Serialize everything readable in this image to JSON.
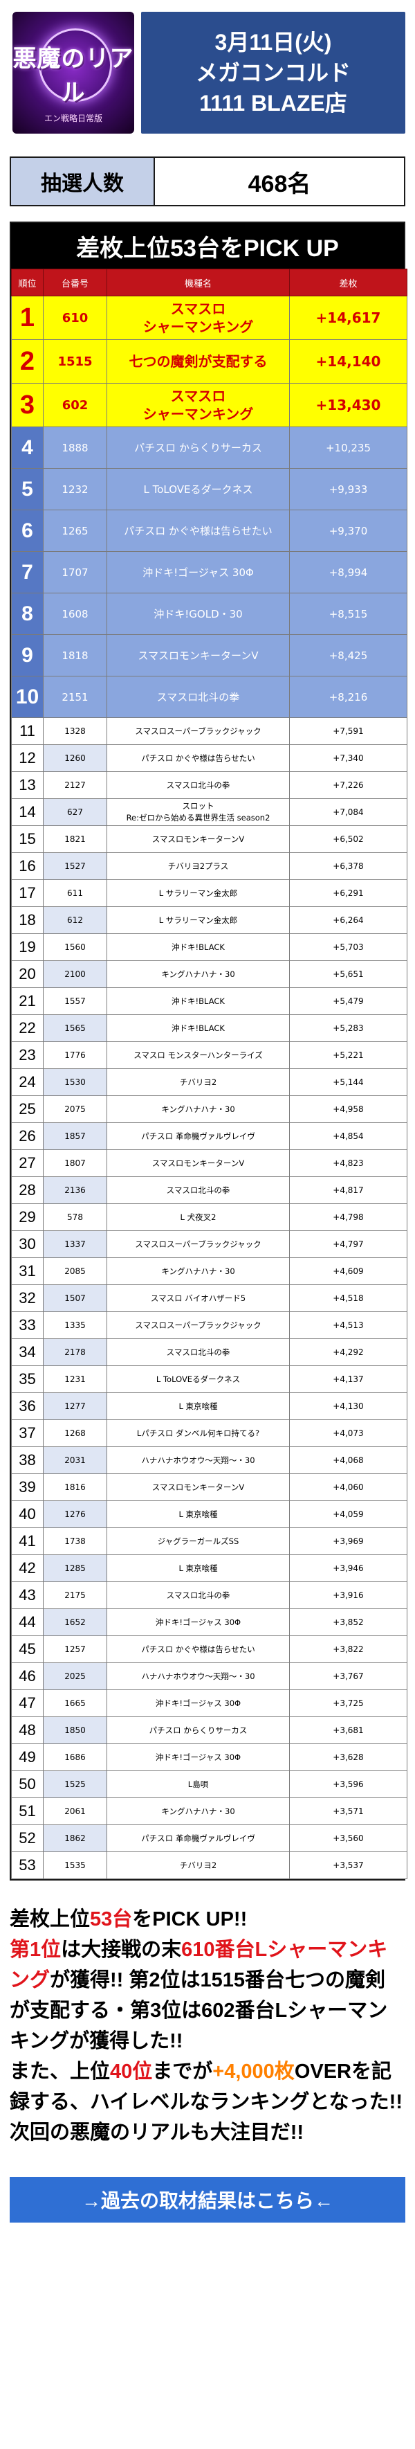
{
  "header": {
    "logo_text": "悪魔のリアル",
    "logo_sub": "エン戦略日常版",
    "date": "3月11日(火)",
    "event": "メガコンコルド",
    "store": "1111 BLAZE店"
  },
  "lottery": {
    "label": "抽選人数",
    "value": "468名"
  },
  "ranking": {
    "title": "差枚上位53台をPICK UP",
    "headers": [
      "順位",
      "台番号",
      "機種名",
      "差枚"
    ],
    "rows": [
      {
        "rank": "1",
        "no": "610",
        "name": "スマスロ\nシャーマンキング",
        "diff": "+14,617"
      },
      {
        "rank": "2",
        "no": "1515",
        "name": "七つの魔剣が支配する",
        "diff": "+14,140"
      },
      {
        "rank": "3",
        "no": "602",
        "name": "スマスロ\nシャーマンキング",
        "diff": "+13,430"
      },
      {
        "rank": "4",
        "no": "1888",
        "name": "パチスロ からくりサーカス",
        "diff": "+10,235"
      },
      {
        "rank": "5",
        "no": "1232",
        "name": "L ToLOVEるダークネス",
        "diff": "+9,933"
      },
      {
        "rank": "6",
        "no": "1265",
        "name": "パチスロ かぐや様は告らせたい",
        "diff": "+9,370"
      },
      {
        "rank": "7",
        "no": "1707",
        "name": "沖ドキ!ゴージャス 30Φ",
        "diff": "+8,994"
      },
      {
        "rank": "8",
        "no": "1608",
        "name": "沖ドキ!GOLD・30",
        "diff": "+8,515"
      },
      {
        "rank": "9",
        "no": "1818",
        "name": "スマスロモンキーターンV",
        "diff": "+8,425"
      },
      {
        "rank": "10",
        "no": "2151",
        "name": "スマスロ北斗の拳",
        "diff": "+8,216"
      },
      {
        "rank": "11",
        "no": "1328",
        "name": "スマスロスーパーブラックジャック",
        "diff": "+7,591"
      },
      {
        "rank": "12",
        "no": "1260",
        "name": "パチスロ かぐや様は告らせたい",
        "diff": "+7,340"
      },
      {
        "rank": "13",
        "no": "2127",
        "name": "スマスロ北斗の拳",
        "diff": "+7,226"
      },
      {
        "rank": "14",
        "no": "627",
        "name": "スロット\nRe:ゼロから始める異世界生活 season2",
        "diff": "+7,084"
      },
      {
        "rank": "15",
        "no": "1821",
        "name": "スマスロモンキーターンV",
        "diff": "+6,502"
      },
      {
        "rank": "16",
        "no": "1527",
        "name": "チバリヨ2プラス",
        "diff": "+6,378"
      },
      {
        "rank": "17",
        "no": "611",
        "name": "L サラリーマン金太郎",
        "diff": "+6,291"
      },
      {
        "rank": "18",
        "no": "612",
        "name": "L サラリーマン金太郎",
        "diff": "+6,264"
      },
      {
        "rank": "19",
        "no": "1560",
        "name": "沖ドキ!BLACK",
        "diff": "+5,703"
      },
      {
        "rank": "20",
        "no": "2100",
        "name": "キングハナハナ・30",
        "diff": "+5,651"
      },
      {
        "rank": "21",
        "no": "1557",
        "name": "沖ドキ!BLACK",
        "diff": "+5,479"
      },
      {
        "rank": "22",
        "no": "1565",
        "name": "沖ドキ!BLACK",
        "diff": "+5,283"
      },
      {
        "rank": "23",
        "no": "1776",
        "name": "スマスロ モンスターハンターライズ",
        "diff": "+5,221"
      },
      {
        "rank": "24",
        "no": "1530",
        "name": "チバリヨ2",
        "diff": "+5,144"
      },
      {
        "rank": "25",
        "no": "2075",
        "name": "キングハナハナ・30",
        "diff": "+4,958"
      },
      {
        "rank": "26",
        "no": "1857",
        "name": "パチスロ 革命機ヴァルヴレイヴ",
        "diff": "+4,854"
      },
      {
        "rank": "27",
        "no": "1807",
        "name": "スマスロモンキーターンV",
        "diff": "+4,823"
      },
      {
        "rank": "28",
        "no": "2136",
        "name": "スマスロ北斗の拳",
        "diff": "+4,817"
      },
      {
        "rank": "29",
        "no": "578",
        "name": "L 犬夜叉2",
        "diff": "+4,798"
      },
      {
        "rank": "30",
        "no": "1337",
        "name": "スマスロスーパーブラックジャック",
        "diff": "+4,797"
      },
      {
        "rank": "31",
        "no": "2085",
        "name": "キングハナハナ・30",
        "diff": "+4,609"
      },
      {
        "rank": "32",
        "no": "1507",
        "name": "スマスロ バイオハザード5",
        "diff": "+4,518"
      },
      {
        "rank": "33",
        "no": "1335",
        "name": "スマスロスーパーブラックジャック",
        "diff": "+4,513"
      },
      {
        "rank": "34",
        "no": "2178",
        "name": "スマスロ北斗の拳",
        "diff": "+4,292"
      },
      {
        "rank": "35",
        "no": "1231",
        "name": "L ToLOVEるダークネス",
        "diff": "+4,137"
      },
      {
        "rank": "36",
        "no": "1277",
        "name": "L 東京喰種",
        "diff": "+4,130"
      },
      {
        "rank": "37",
        "no": "1268",
        "name": "Lパチスロ ダンベル何キロ持てる?",
        "diff": "+4,073"
      },
      {
        "rank": "38",
        "no": "2031",
        "name": "ハナハナホウオウ～天翔～・30",
        "diff": "+4,068"
      },
      {
        "rank": "39",
        "no": "1816",
        "name": "スマスロモンキーターンV",
        "diff": "+4,060"
      },
      {
        "rank": "40",
        "no": "1276",
        "name": "L 東京喰種",
        "diff": "+4,059"
      },
      {
        "rank": "41",
        "no": "1738",
        "name": "ジャグラーガールズSS",
        "diff": "+3,969"
      },
      {
        "rank": "42",
        "no": "1285",
        "name": "L 東京喰種",
        "diff": "+3,946"
      },
      {
        "rank": "43",
        "no": "2175",
        "name": "スマスロ北斗の拳",
        "diff": "+3,916"
      },
      {
        "rank": "44",
        "no": "1652",
        "name": "沖ドキ!ゴージャス 30Φ",
        "diff": "+3,852"
      },
      {
        "rank": "45",
        "no": "1257",
        "name": "パチスロ かぐや様は告らせたい",
        "diff": "+3,822"
      },
      {
        "rank": "46",
        "no": "2025",
        "name": "ハナハナホウオウ～天翔～・30",
        "diff": "+3,767"
      },
      {
        "rank": "47",
        "no": "1665",
        "name": "沖ドキ!ゴージャス 30Φ",
        "diff": "+3,725"
      },
      {
        "rank": "48",
        "no": "1850",
        "name": "パチスロ からくりサーカス",
        "diff": "+3,681"
      },
      {
        "rank": "49",
        "no": "1686",
        "name": "沖ドキ!ゴージャス 30Φ",
        "diff": "+3,628"
      },
      {
        "rank": "50",
        "no": "1525",
        "name": "L島唄",
        "diff": "+3,596"
      },
      {
        "rank": "51",
        "no": "2061",
        "name": "キングハナハナ・30",
        "diff": "+3,571"
      },
      {
        "rank": "52",
        "no": "1862",
        "name": "パチスロ 革命機ヴァルヴレイヴ",
        "diff": "+3,560"
      },
      {
        "rank": "53",
        "no": "1535",
        "name": "チバリヨ2",
        "diff": "+3,537"
      }
    ]
  },
  "summary": {
    "parts": [
      {
        "t": "差枚上位",
        "c": ""
      },
      {
        "t": "53台",
        "c": "red"
      },
      {
        "t": "をPICK UP!!",
        "c": ""
      },
      {
        "br": true
      },
      {
        "t": "第1位",
        "c": "red"
      },
      {
        "t": "は大接戦の末",
        "c": ""
      },
      {
        "t": "610番台Lシャーマンキング",
        "c": "red"
      },
      {
        "t": "が獲得!! 第2位は1515番台七つの魔剣が支配する・第3位は602番台Lシャーマンキングが獲得した!!",
        "c": ""
      },
      {
        "br": true
      },
      {
        "t": "また、上位",
        "c": ""
      },
      {
        "t": "40位",
        "c": "red"
      },
      {
        "t": "までが",
        "c": ""
      },
      {
        "t": "+4,000枚",
        "c": "org"
      },
      {
        "t": "OVERを記録する、ハイレベルなランキングとなった!! 次回の悪魔のリアルも大注目だ!!",
        "c": ""
      }
    ]
  },
  "link": {
    "label": "→過去の取材結果はこちら←"
  },
  "colors": {
    "header_bg": "#2b4d8e",
    "table_header": "#c0141b",
    "top3_bg": "#ffff00",
    "top3_text": "#d40000",
    "top10_bg": "#8aa6de",
    "link_bg": "#2f6fd4"
  }
}
